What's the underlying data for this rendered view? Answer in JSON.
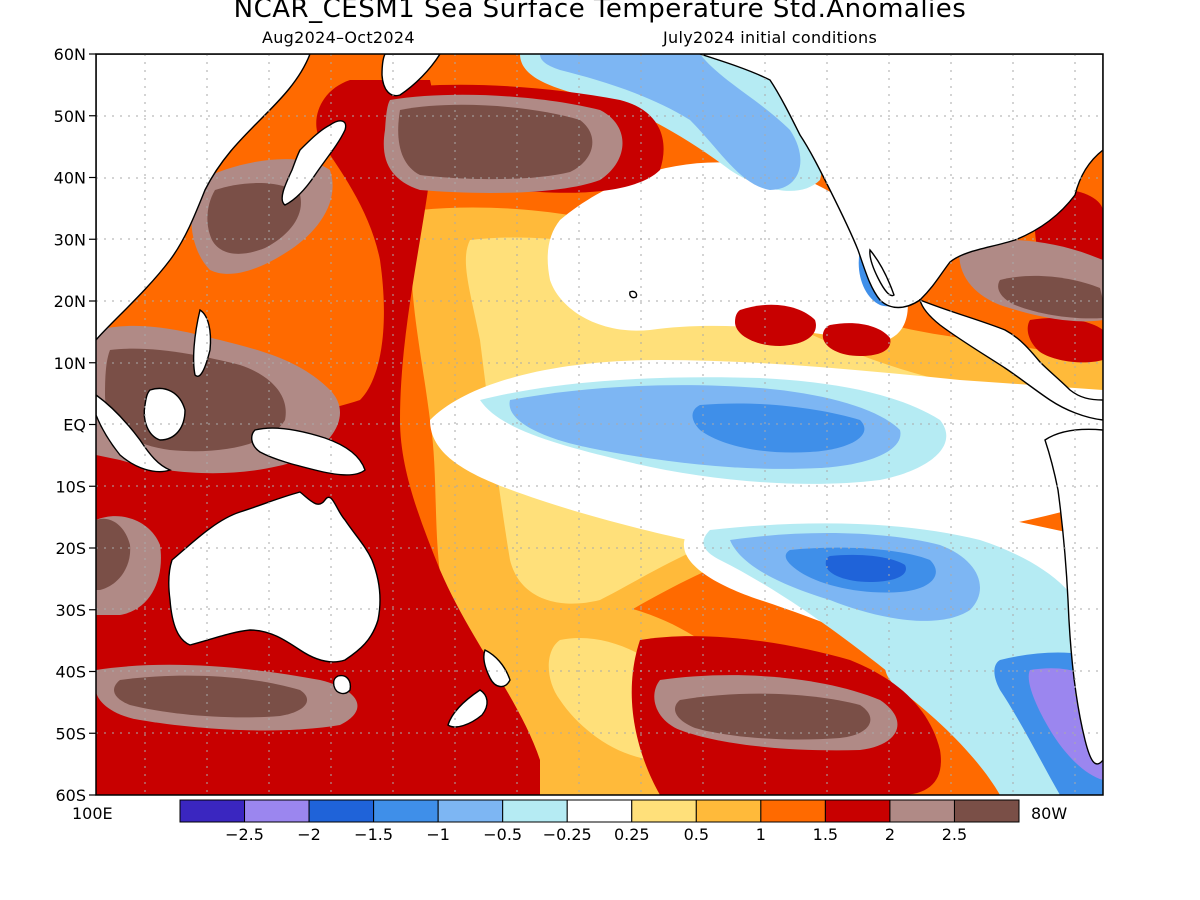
{
  "title": "NCAR_CESM1 Sea Surface Temperature Std.Anomalies",
  "subtitle_left": "Aug2024–Oct2024",
  "subtitle_right": "July2024 initial conditions",
  "lat_labels": [
    "60N",
    "50N",
    "40N",
    "30N",
    "20N",
    "10N",
    "EQ",
    "10S",
    "20S",
    "30S",
    "40S",
    "50S",
    "60S"
  ],
  "lon_labels": {
    "west": "100E",
    "east": "80W"
  },
  "colorbar": {
    "colors": [
      "#3a26c0",
      "#9b86ef",
      "#1f63d9",
      "#3f8fe9",
      "#7db6f3",
      "#b5ebf3",
      "#ffffff",
      "#ffe07a",
      "#ffba3a",
      "#ff6a00",
      "#c80000",
      "#b08a86",
      "#7a4f47"
    ],
    "labels": [
      "-2.5",
      "-2",
      "-1.5",
      "-1",
      "-0.5",
      "-0.25",
      "0.25",
      "0.5",
      "1",
      "1.5",
      "2",
      "2.5"
    ]
  },
  "palette": {
    "cold_strong": "#1f63d9",
    "cold": "#3f8fe9",
    "cool": "#7db6f3",
    "cool_light": "#b5ebf3",
    "near_zero": "#ffffff",
    "warm_light": "#ffe07a",
    "warm": "#ffba3a",
    "warm_med": "#ff6a00",
    "hot": "#c80000",
    "very_hot": "#b08a86",
    "extreme": "#7a4f47",
    "land": "#ffffff",
    "coast": "#000000",
    "grid": "#aaaaaa"
  }
}
